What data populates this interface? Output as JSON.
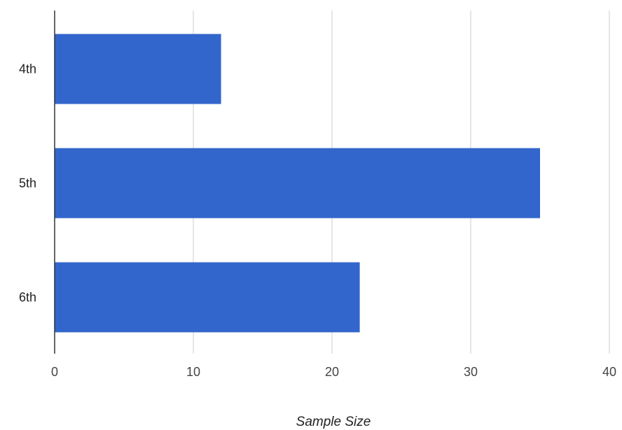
{
  "chart_data": {
    "type": "bar",
    "orientation": "horizontal",
    "categories": [
      "4th",
      "5th",
      "6th"
    ],
    "values": [
      12,
      35,
      22
    ],
    "title": "",
    "xlabel": "Sample Size",
    "ylabel": "",
    "xlim": [
      0,
      40
    ],
    "xticks": [
      0,
      10,
      20,
      30,
      40
    ],
    "xtick_labels": [
      "0",
      "10",
      "20",
      "30",
      "40"
    ],
    "grid": true,
    "legend": "none",
    "bar_color": "#3366cc",
    "grid_color": "#cccccc",
    "axis_color": "#333333"
  }
}
